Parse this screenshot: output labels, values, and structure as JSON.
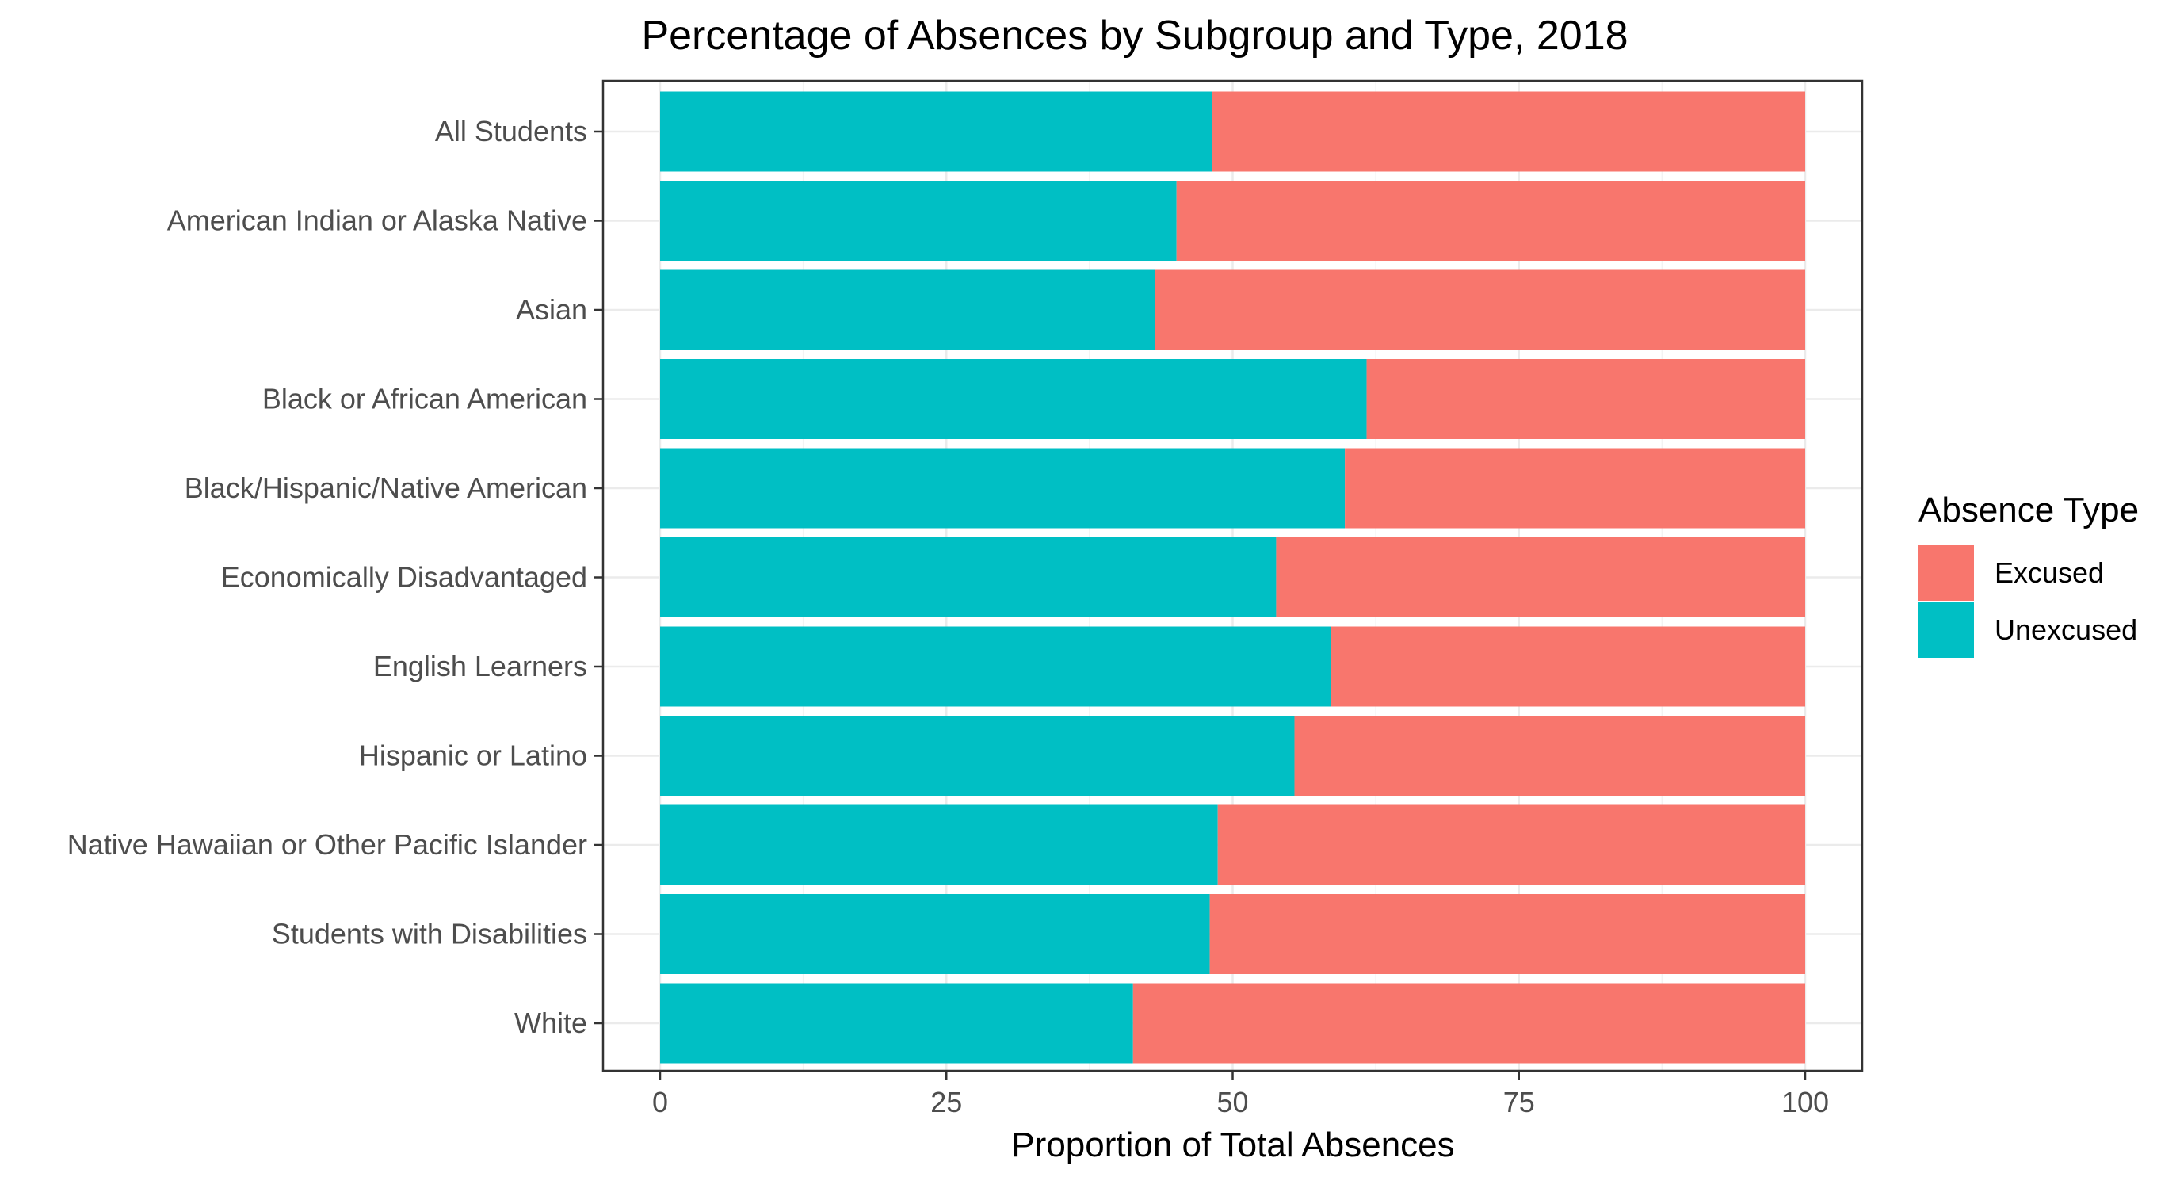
{
  "chart_data": {
    "type": "bar",
    "orientation": "horizontal",
    "stacked": true,
    "title": "Percentage of Absences by Subgroup and Type, 2018",
    "xlabel": "Proportion of Total Absences",
    "ylabel": "",
    "xlim": [
      0,
      100
    ],
    "xticks": [
      "0",
      "25",
      "50",
      "75",
      "100"
    ],
    "categories": [
      "All Students",
      "American Indian or Alaska Native",
      "Asian",
      "Black or African American",
      "Black/Hispanic/Native American",
      "Economically Disadvantaged",
      "English Learners",
      "Hispanic or Latino",
      "Native Hawaiian or Other Pacific Islander",
      "Students with Disabilities",
      "White"
    ],
    "series": [
      {
        "name": "Unexcused",
        "color": "#00bfc4",
        "values": [
          48.2,
          45.1,
          43.2,
          61.7,
          59.8,
          53.8,
          58.6,
          55.4,
          48.7,
          48.0,
          41.3
        ]
      },
      {
        "name": "Excused",
        "color": "#f8766d",
        "values": [
          51.8,
          54.9,
          56.8,
          38.3,
          40.2,
          46.2,
          41.4,
          44.6,
          51.3,
          52.0,
          58.7
        ]
      }
    ],
    "legend": {
      "title": "Absence Type",
      "placement": "right",
      "entries": [
        {
          "label": "Excused",
          "color": "#f8766d"
        },
        {
          "label": "Unexcused",
          "color": "#00bfc4"
        }
      ]
    },
    "grid": true
  }
}
